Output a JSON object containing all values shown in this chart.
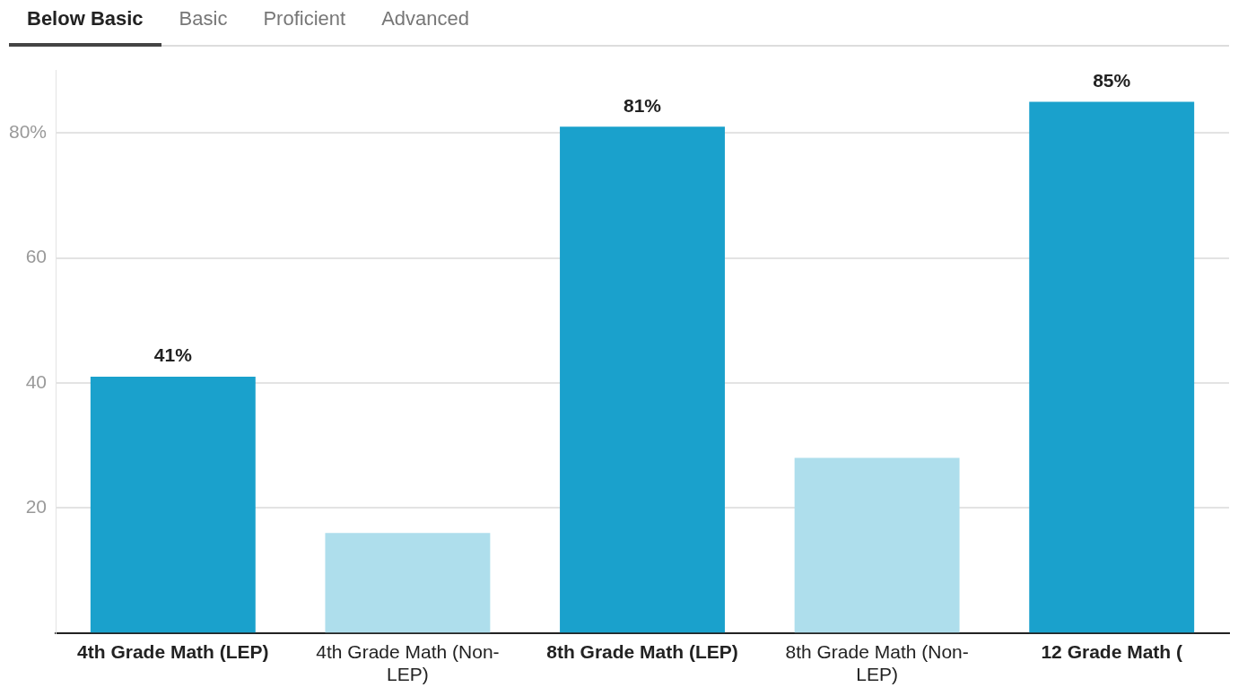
{
  "chart_data": {
    "type": "bar",
    "categories": [
      "4th Grade Math (LEP)",
      "4th Grade Math (Non-LEP)",
      "8th Grade Math (LEP)",
      "8th Grade Math (Non-LEP)",
      "12 Grade Math ("
    ],
    "values": [
      41,
      16,
      81,
      28,
      85
    ],
    "colors": [
      "#1aa1cc",
      "#aedeec",
      "#1aa1cc",
      "#aedeec",
      "#1aa1cc"
    ],
    "value_labels": [
      "41%",
      null,
      "81%",
      null,
      "85%"
    ],
    "ylim": [
      0,
      90
    ],
    "yticks": [
      20,
      40,
      60,
      {
        "value": 80,
        "label": "80%"
      }
    ],
    "grid": "y",
    "annotations": [
      "Below Basic",
      "Basic",
      "Proficient",
      "Advanced"
    ]
  }
}
